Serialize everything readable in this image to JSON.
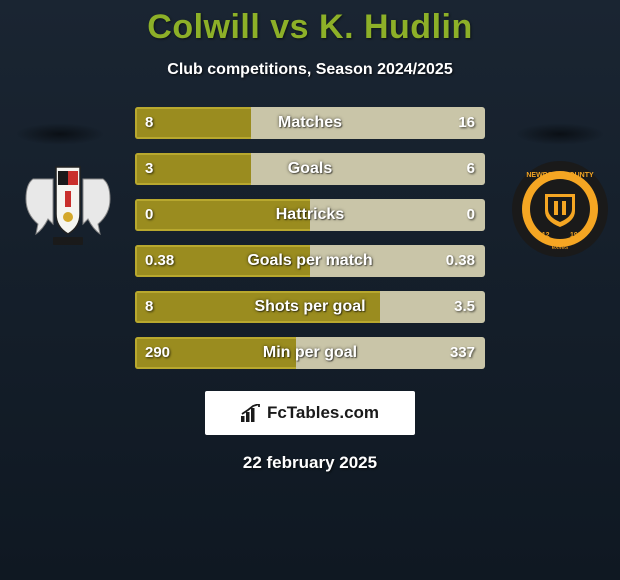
{
  "title": "Colwill vs K. Hudlin",
  "subtitle": "Club competitions, Season 2024/2025",
  "date": "22 february 2025",
  "watermark": "FcTables.com",
  "colors": {
    "left_fill": "#9a8c1f",
    "right_fill": "#c9c5a8",
    "left_border": "#b8a82e",
    "background_top": "#1a2532",
    "background_bottom": "#0f1822"
  },
  "stats": [
    {
      "label": "Matches",
      "left_val": "8",
      "right_val": "16",
      "left_pct": 33,
      "right_pct": 67
    },
    {
      "label": "Goals",
      "left_val": "3",
      "right_val": "6",
      "left_pct": 33,
      "right_pct": 67
    },
    {
      "label": "Hattricks",
      "left_val": "0",
      "right_val": "0",
      "left_pct": 50,
      "right_pct": 50
    },
    {
      "label": "Goals per match",
      "left_val": "0.38",
      "right_val": "0.38",
      "left_pct": 50,
      "right_pct": 50
    },
    {
      "label": "Shots per goal",
      "left_val": "8",
      "right_val": "3.5",
      "left_pct": 70,
      "right_pct": 30
    },
    {
      "label": "Min per goal",
      "left_val": "290",
      "right_val": "337",
      "left_pct": 46,
      "right_pct": 54
    }
  ],
  "crests": {
    "left_name": "exeter-city-crest",
    "right_name": "newport-county-crest"
  }
}
